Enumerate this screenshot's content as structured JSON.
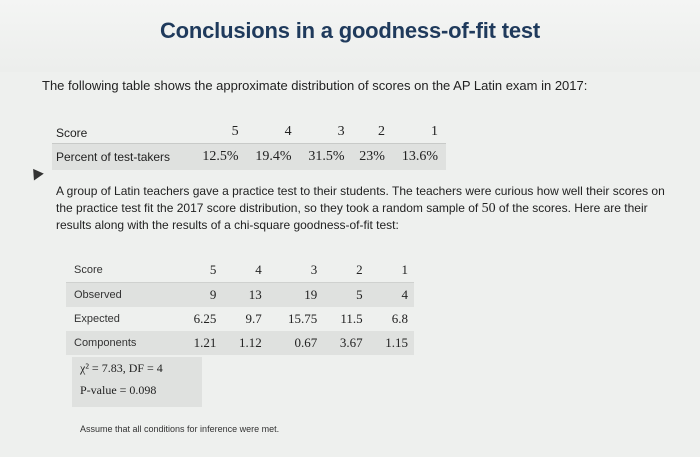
{
  "title": "Conclusions in a goodness-of-fit test",
  "intro": "The following table shows the approximate distribution of scores on the AP Latin exam in 2017:",
  "table1": {
    "row_labels": [
      "Score",
      "Percent of test-takers"
    ],
    "scores": [
      "5",
      "4",
      "3",
      "2",
      "1"
    ],
    "percents": [
      "12.5%",
      "19.4%",
      "31.5%",
      "23%",
      "13.6%"
    ]
  },
  "paragraph": {
    "before": "A group of Latin teachers gave a practice test to their students. The teachers were curious how well their scores on the practice test fit the 2017 score distribution, so they took a random sample of ",
    "n": "50",
    "after": " of the scores. Here are their results along with the results of a chi-square goodness-of-fit test:"
  },
  "table2": {
    "rows": [
      {
        "label": "Score",
        "values": [
          "5",
          "4",
          "3",
          "2",
          "1"
        ]
      },
      {
        "label": "Observed",
        "values": [
          "9",
          "13",
          "19",
          "5",
          "4"
        ]
      },
      {
        "label": "Expected",
        "values": [
          "6.25",
          "9.7",
          "15.75",
          "11.5",
          "6.8"
        ]
      },
      {
        "label": "Components",
        "values": [
          "1.21",
          "1.12",
          "0.67",
          "3.67",
          "1.15"
        ]
      }
    ]
  },
  "stats": {
    "chi_line": "χ² = 7.83, DF = 4",
    "p_line": "P-value = 0.098"
  },
  "note": "Assume that all conditions for inference were met."
}
